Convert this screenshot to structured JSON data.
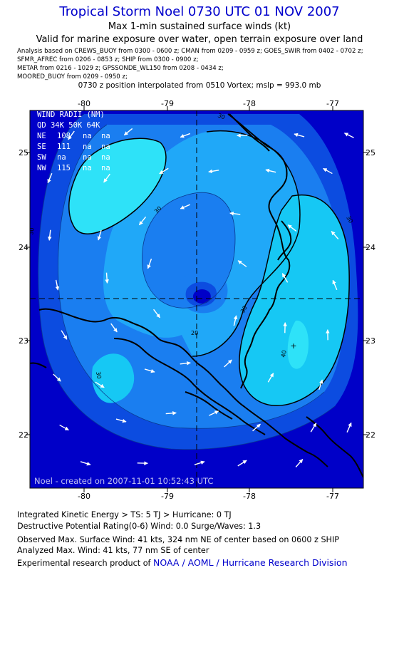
{
  "header": {
    "title": "Tropical Storm Noel 0730 UTC 01 NOV 2007",
    "subtitle": "Max 1-min sustained surface winds (kt)",
    "valid": "Valid for marine exposure over water, open terrain exposure over land",
    "analysis_lines": [
      "Analysis based on  CREWS_BUOY from 0300 - 0600 z;  CMAN from 0209 - 0959 z;  GOES_SWIR from 0402 - 0702 z;",
      "SFMR_AFREC from 0206 - 0853 z;  SHIP from 0300 - 0900 z;",
      "METAR from 0216 - 1029 z;  GPSSONDE_WL150 from 0208 - 0434 z;",
      "MOORED_BUOY from 0209 - 0950 z;"
    ],
    "position_note": "0730 z position interpolated from 0510 Vortex; mslp = 993.0 mb"
  },
  "map": {
    "lon_ticks": [
      "-80",
      "-79",
      "-78",
      "-77"
    ],
    "lat_ticks": [
      "25",
      "24",
      "23",
      "22"
    ],
    "center": {
      "lon": -78.5,
      "lat": 23.45
    },
    "contour_labels": [
      "30",
      "30",
      "30",
      "30",
      "30",
      "30",
      "20",
      "40"
    ],
    "colors": {
      "c10": "#0000c8",
      "c20": "#0c4ce0",
      "c30": "#1a7ef0",
      "c40": "#20a8f8",
      "c50": "#16c8f4",
      "c60": "#2ee2f8",
      "land": "#000000"
    },
    "credit": "Noel - created on 2007-11-01 10:52:43 UTC"
  },
  "wind_radii": {
    "title": "WIND RADII (NM)",
    "header": "QD  34K  50K  64K",
    "rows": [
      {
        "quadrant": "NE",
        "r34": "108",
        "r50": "na",
        "r64": "na"
      },
      {
        "quadrant": "SE",
        "r34": "111",
        "r50": "na",
        "r64": "na"
      },
      {
        "quadrant": "SW",
        "r34": "na",
        "r50": "na",
        "r64": "na"
      },
      {
        "quadrant": "NW",
        "r34": "115",
        "r50": "na",
        "r64": "na"
      }
    ]
  },
  "footer": {
    "ike": "Integrated Kinetic Energy > TS: 5 TJ   > Hurricane: 0 TJ",
    "dpr": "Destructive Potential Rating(0-6)   Wind: 0.0 Surge/Waves: 1.3",
    "observed": "Observed Max. Surface Wind: 41 kts, 324 nm NE of center based on 0600 z SHIP",
    "analyzed": "Analyzed Max. Wind: 41 kts, 77 nm SE of center",
    "product_prefix": "Experimental research product of",
    "product_org": "NOAA / AOML / Hurricane Research Division"
  }
}
